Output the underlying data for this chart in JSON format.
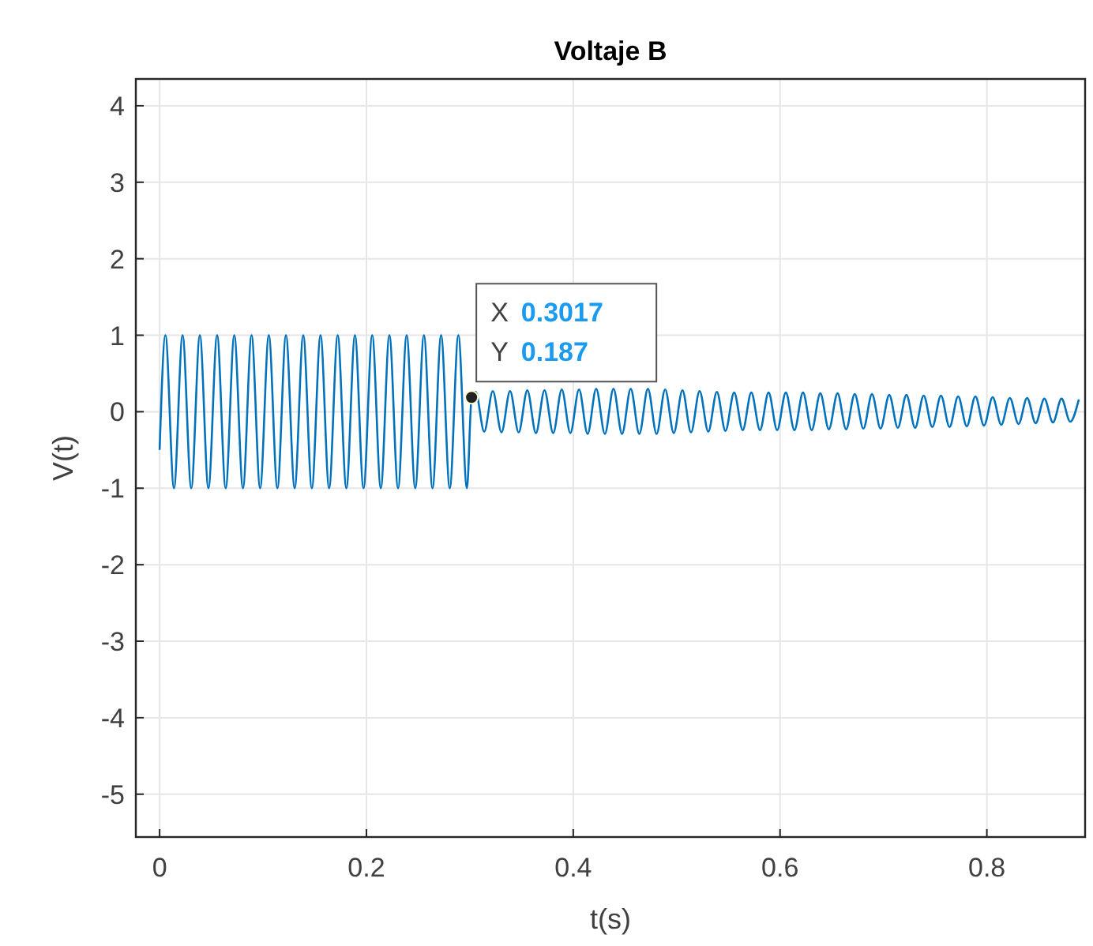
{
  "chart_data": {
    "type": "line",
    "title": "Voltaje B",
    "xlabel": "t(s)",
    "ylabel": "V(t)",
    "xlim": [
      -0.023,
      0.895
    ],
    "xticks": [
      0,
      0.2,
      0.4,
      0.6,
      0.8
    ],
    "ylim": [
      -5.56,
      4.35
    ],
    "yticks": [
      -5,
      -4,
      -3,
      -2,
      -1,
      0,
      1,
      2,
      3,
      4
    ],
    "grid": true,
    "marker": "none",
    "line_style": "solid",
    "annotations": [
      {
        "text": "X 0.3017",
        "x": 0.3017,
        "y": 0.187
      },
      {
        "text": "Y 0.187",
        "x": 0.3017,
        "y": 0.187
      }
    ],
    "series": [
      {
        "color": "#0072bd",
        "x": [
          0,
          0.0056,
          0.0139,
          0.0222,
          0.0306,
          0.0389,
          0.0472,
          0.0556,
          0.0639,
          0.0722,
          0.0806,
          0.0889,
          0.0972,
          0.1056,
          0.1139,
          0.1222,
          0.1306,
          0.1389,
          0.1472,
          0.1556,
          0.1639,
          0.1722,
          0.1806,
          0.1889,
          0.1972,
          0.2056,
          0.2139,
          0.2222,
          0.2306,
          0.2389,
          0.2472,
          0.2556,
          0.2639,
          0.2722,
          0.2806,
          0.2889,
          0.2972,
          0.3017,
          0.3056,
          0.3139,
          0.3222,
          0.3306,
          0.3389,
          0.3472,
          0.3556,
          0.3639,
          0.3722,
          0.3806,
          0.3889,
          0.3972,
          0.4056,
          0.4139,
          0.4222,
          0.4306,
          0.4389,
          0.4472,
          0.4556,
          0.4639,
          0.4722,
          0.4806,
          0.4889,
          0.4972,
          0.5056,
          0.5139,
          0.5222,
          0.5306,
          0.5389,
          0.5472,
          0.5556,
          0.5639,
          0.5722,
          0.5806,
          0.5889,
          0.5972,
          0.6056,
          0.6139,
          0.6222,
          0.6306,
          0.6389,
          0.6472,
          0.6556,
          0.6639,
          0.6722,
          0.6806,
          0.6889,
          0.6972,
          0.7056,
          0.7139,
          0.7222,
          0.7306,
          0.7389,
          0.7472,
          0.7556,
          0.7639,
          0.7722,
          0.7806,
          0.7889,
          0.7972,
          0.8056,
          0.8139,
          0.8222,
          0.8306,
          0.8389,
          0.8472,
          0.8556,
          0.8639,
          0.8722,
          0.8806,
          0.8889
        ],
        "values": [
          -0.5,
          1,
          -1,
          1,
          -1,
          1,
          -1,
          1,
          -1,
          1,
          -1,
          1,
          -1,
          1,
          -1,
          1,
          -1,
          1,
          -1,
          1,
          -1,
          1,
          -1,
          1,
          -1,
          1,
          -1,
          1,
          -1,
          1,
          -1,
          1,
          -1,
          1,
          -1,
          1,
          -1,
          0.187,
          0.26,
          -0.26,
          0.27,
          -0.27,
          0.27,
          -0.27,
          0.28,
          -0.28,
          0.28,
          -0.28,
          0.29,
          -0.28,
          0.29,
          -0.29,
          0.3,
          -0.29,
          0.3,
          -0.29,
          0.3,
          -0.29,
          0.3,
          -0.29,
          0.29,
          -0.28,
          0.28,
          -0.27,
          0.27,
          -0.26,
          0.26,
          -0.25,
          0.25,
          -0.24,
          0.25,
          -0.24,
          0.25,
          -0.24,
          0.25,
          -0.24,
          0.25,
          -0.24,
          0.24,
          -0.23,
          0.24,
          -0.23,
          0.23,
          -0.22,
          0.23,
          -0.22,
          0.22,
          -0.21,
          0.22,
          -0.21,
          0.21,
          -0.2,
          0.21,
          -0.2,
          0.2,
          -0.19,
          0.2,
          -0.18,
          0.19,
          -0.17,
          0.18,
          -0.16,
          0.18,
          -0.15,
          0.17,
          -0.14,
          0.17,
          -0.13,
          0.16
        ]
      }
    ]
  }
}
